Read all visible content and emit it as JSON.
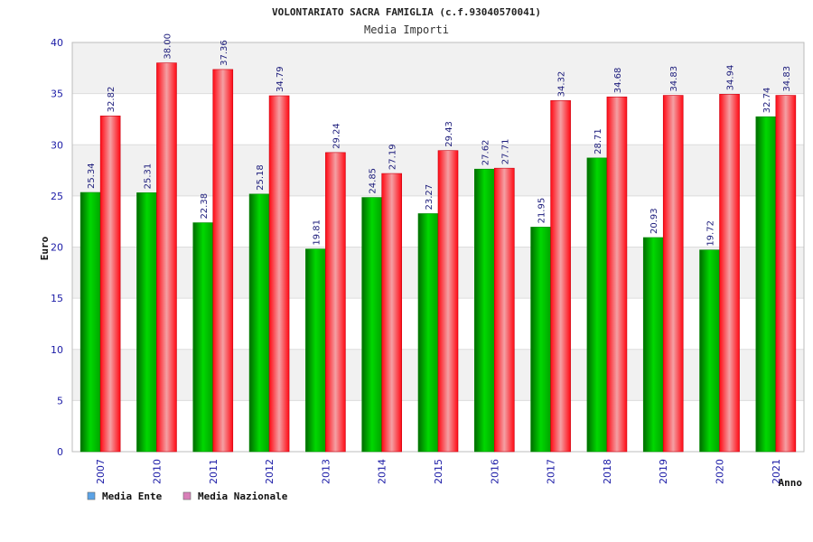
{
  "chart_data": {
    "type": "bar",
    "title": "VOLONTARIATO SACRA FAMIGLIA (c.f.93040570041)",
    "subtitle": "Media Importi",
    "xlabel": "Anno",
    "ylabel": "Euro",
    "ylim": [
      0,
      40
    ],
    "yticks": [
      0,
      5,
      10,
      15,
      20,
      25,
      30,
      35,
      40
    ],
    "categories": [
      "2007",
      "2010",
      "2011",
      "2012",
      "2013",
      "2014",
      "2015",
      "2016",
      "2017",
      "2018",
      "2019",
      "2020",
      "2021"
    ],
    "series": [
      {
        "name": "Media Ente",
        "color": "#00b000",
        "values": [
          25.34,
          25.31,
          22.38,
          25.18,
          19.81,
          24.85,
          23.27,
          27.62,
          21.95,
          28.71,
          20.93,
          19.72,
          32.74
        ],
        "labels": [
          "25.34",
          "25.31",
          "22.38",
          "25.18",
          "19.81",
          "24.85",
          "23.27",
          "27.62",
          "21.95",
          "28.71",
          "20.93",
          "19.72",
          "32.74"
        ]
      },
      {
        "name": "Media Nazionale",
        "color": "#e8202a",
        "values": [
          32.82,
          38.0,
          37.36,
          34.79,
          29.24,
          27.19,
          29.43,
          27.71,
          34.32,
          34.68,
          34.83,
          34.94,
          34.83
        ],
        "labels": [
          "32.82",
          "38.00",
          "37.36",
          "34.79",
          "29.24",
          "27.19",
          "29.43",
          "27.71",
          "34.32",
          "34.68",
          "34.83",
          "34.94",
          "34.83"
        ]
      }
    ],
    "legend": [
      {
        "label": "Media Ente",
        "color": "#5ba3e6"
      },
      {
        "label": "Media Nazionale",
        "color": "#d97fb8"
      }
    ],
    "legend_position": "bottom-left",
    "grid": true
  }
}
